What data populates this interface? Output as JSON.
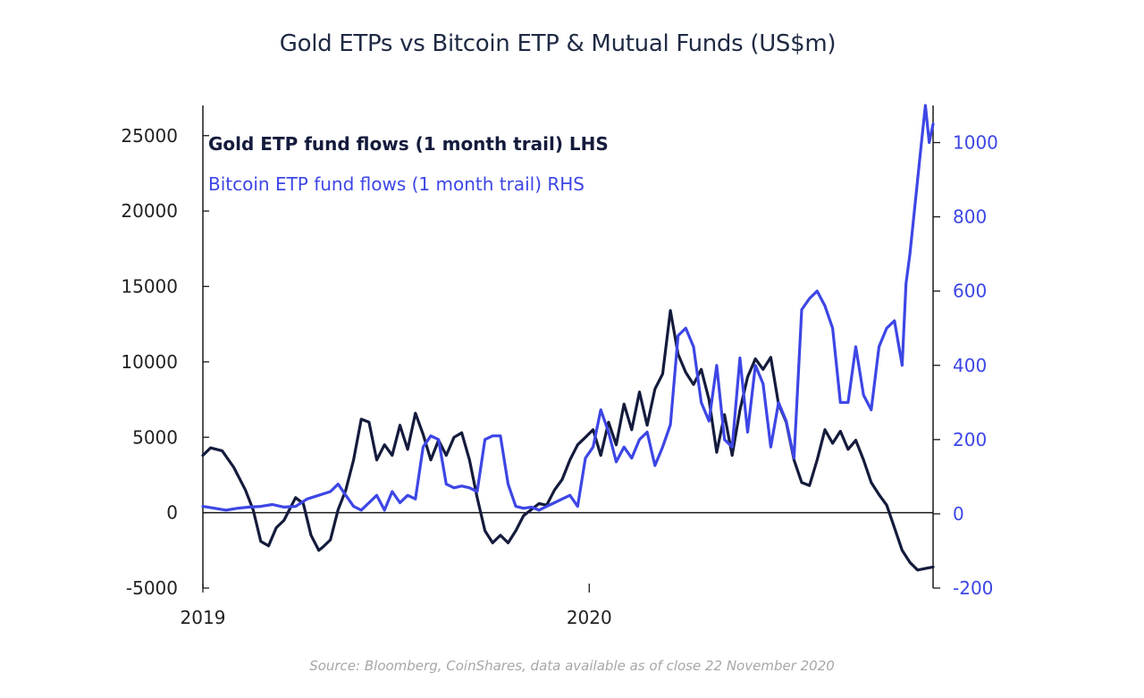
{
  "colors": {
    "gold": "#141b3c",
    "bitcoin": "#3d46e5",
    "axis": "#1a1a1a",
    "source": "#a7a7a7",
    "title": "#1f2a44"
  },
  "chart_data": {
    "type": "line",
    "title": "Gold ETPs vs Bitcoin ETP & Mutual Funds (US$m)",
    "source": "Source: Bloomberg, CoinShares, data available as of close 22 November 2020",
    "x_range": [
      2019.0,
      2020.89
    ],
    "x_ticks": [
      {
        "value": 2019,
        "label": "2019"
      },
      {
        "value": 2020,
        "label": "2020"
      }
    ],
    "y_left": {
      "range": [
        -5000,
        27000
      ],
      "ticks": [
        -5000,
        0,
        5000,
        10000,
        15000,
        20000,
        25000
      ],
      "tick_labels": [
        "-5000",
        "0",
        "5000",
        "10000",
        "15000",
        "20000",
        "25000"
      ]
    },
    "y_right": {
      "range": [
        -200,
        1100
      ],
      "ticks": [
        -200,
        0,
        200,
        400,
        600,
        800,
        1000
      ],
      "tick_labels": [
        "-200",
        "0",
        "200",
        "400",
        "600",
        "800",
        "1000"
      ]
    },
    "legend": "top-left",
    "series": [
      {
        "name": "Gold ETP fund flows (1 month trail) LHS",
        "axis": "left",
        "x": [
          2019.0,
          2019.02,
          2019.05,
          2019.08,
          2019.11,
          2019.13,
          2019.15,
          2019.17,
          2019.19,
          2019.21,
          2019.24,
          2019.26,
          2019.28,
          2019.3,
          2019.31,
          2019.33,
          2019.35,
          2019.37,
          2019.39,
          2019.41,
          2019.43,
          2019.45,
          2019.47,
          2019.49,
          2019.51,
          2019.53,
          2019.55,
          2019.57,
          2019.59,
          2019.61,
          2019.63,
          2019.65,
          2019.67,
          2019.69,
          2019.71,
          2019.73,
          2019.75,
          2019.77,
          2019.79,
          2019.81,
          2019.83,
          2019.85,
          2019.87,
          2019.89,
          2019.91,
          2019.93,
          2019.95,
          2019.97,
          2019.99,
          2020.01,
          2020.03,
          2020.05,
          2020.07,
          2020.09,
          2020.11,
          2020.13,
          2020.15,
          2020.17,
          2020.19,
          2020.21,
          2020.23,
          2020.25,
          2020.27,
          2020.29,
          2020.31,
          2020.33,
          2020.35,
          2020.37,
          2020.39,
          2020.41,
          2020.43,
          2020.45,
          2020.47,
          2020.49,
          2020.51,
          2020.53,
          2020.55,
          2020.57,
          2020.59,
          2020.61,
          2020.63,
          2020.65,
          2020.67,
          2020.69,
          2020.71,
          2020.73,
          2020.75,
          2020.77,
          2020.79,
          2020.81,
          2020.83,
          2020.85,
          2020.87,
          2020.89
        ],
        "y": [
          3800,
          4300,
          4100,
          3000,
          1500,
          200,
          -1900,
          -2200,
          -1000,
          -500,
          1000,
          600,
          -1500,
          -2500,
          -2300,
          -1800,
          200,
          1500,
          3500,
          6200,
          6000,
          3500,
          4500,
          3800,
          5800,
          4200,
          6600,
          5200,
          3500,
          4800,
          3800,
          5000,
          5300,
          3500,
          1000,
          -1200,
          -2000,
          -1500,
          -2000,
          -1200,
          -200,
          200,
          600,
          500,
          1500,
          2200,
          3500,
          4500,
          5000,
          5500,
          3800,
          6000,
          4500,
          7200,
          5500,
          8000,
          5800,
          8200,
          9200,
          13400,
          10500,
          9300,
          8500,
          9500,
          7500,
          4000,
          6500,
          3800,
          6800,
          9000,
          10200,
          9500,
          10300,
          7200,
          6000,
          3500,
          2000,
          1800,
          3500,
          5500,
          4600,
          5400,
          4200,
          4800,
          3500,
          2000,
          1200,
          500,
          -1000,
          -2500,
          -3300,
          -3800,
          -3700,
          -3600
        ],
        "color_key": "gold"
      },
      {
        "name": "Bitcoin ETP fund flows (1 month trail) RHS",
        "axis": "right",
        "x": [
          2019.0,
          2019.03,
          2019.06,
          2019.09,
          2019.12,
          2019.15,
          2019.18,
          2019.21,
          2019.24,
          2019.27,
          2019.3,
          2019.33,
          2019.35,
          2019.37,
          2019.39,
          2019.41,
          2019.43,
          2019.45,
          2019.47,
          2019.49,
          2019.51,
          2019.53,
          2019.55,
          2019.57,
          2019.59,
          2019.61,
          2019.63,
          2019.65,
          2019.67,
          2019.69,
          2019.71,
          2019.73,
          2019.75,
          2019.77,
          2019.79,
          2019.81,
          2019.83,
          2019.85,
          2019.87,
          2019.89,
          2019.91,
          2019.93,
          2019.95,
          2019.97,
          2019.99,
          2020.01,
          2020.03,
          2020.05,
          2020.07,
          2020.09,
          2020.11,
          2020.13,
          2020.15,
          2020.17,
          2020.19,
          2020.21,
          2020.23,
          2020.25,
          2020.27,
          2020.29,
          2020.31,
          2020.33,
          2020.35,
          2020.37,
          2020.39,
          2020.41,
          2020.43,
          2020.45,
          2020.47,
          2020.49,
          2020.51,
          2020.53,
          2020.55,
          2020.57,
          2020.59,
          2020.61,
          2020.63,
          2020.65,
          2020.67,
          2020.69,
          2020.71,
          2020.73,
          2020.75,
          2020.77,
          2020.79,
          2020.81,
          2020.82,
          2020.83,
          2020.84,
          2020.85,
          2020.86,
          2020.87,
          2020.88,
          2020.89
        ],
        "y": [
          20,
          15,
          10,
          15,
          18,
          20,
          25,
          18,
          20,
          40,
          50,
          60,
          80,
          50,
          20,
          10,
          30,
          50,
          10,
          60,
          30,
          50,
          40,
          180,
          210,
          200,
          80,
          70,
          75,
          70,
          60,
          200,
          210,
          210,
          80,
          20,
          15,
          18,
          10,
          20,
          30,
          40,
          50,
          20,
          150,
          180,
          280,
          220,
          140,
          180,
          150,
          200,
          220,
          130,
          180,
          240,
          480,
          500,
          450,
          300,
          250,
          400,
          200,
          180,
          420,
          220,
          400,
          350,
          180,
          300,
          250,
          150,
          550,
          580,
          600,
          560,
          500,
          300,
          300,
          450,
          320,
          280,
          450,
          500,
          520,
          400,
          620,
          700,
          800,
          900,
          1000,
          1100,
          1000,
          1050
        ],
        "color_key": "bitcoin"
      }
    ]
  }
}
